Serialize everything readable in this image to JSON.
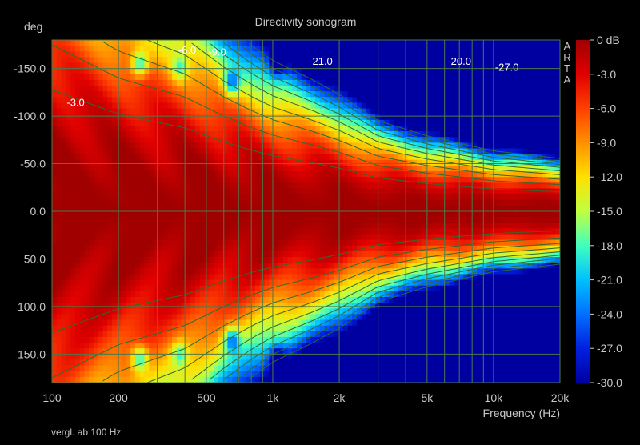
{
  "chart_data": {
    "type": "heatmap",
    "title": "Directivity sonogram",
    "xlabel": "Frequency (Hz)",
    "ylabel": "deg",
    "footnote": "vergl. ab 100 Hz",
    "brand": "ARTA",
    "x_scale": "log",
    "xlim": [
      100,
      20000
    ],
    "ylim": [
      -180,
      180
    ],
    "x_ticks": [
      {
        "value": 100,
        "label": "100"
      },
      {
        "value": 200,
        "label": "200"
      },
      {
        "value": 500,
        "label": "500"
      },
      {
        "value": 1000,
        "label": "1k"
      },
      {
        "value": 2000,
        "label": "2k"
      },
      {
        "value": 5000,
        "label": "5k"
      },
      {
        "value": 10000,
        "label": "10k"
      },
      {
        "value": 20000,
        "label": "20k"
      }
    ],
    "x_grid": [
      100,
      200,
      300,
      400,
      500,
      600,
      700,
      800,
      900,
      1000,
      2000,
      3000,
      4000,
      5000,
      6000,
      7000,
      8000,
      9000,
      10000,
      20000
    ],
    "y_ticks": [
      {
        "value": -150,
        "label": "-150.0"
      },
      {
        "value": -100,
        "label": "-100.0"
      },
      {
        "value": -50,
        "label": "-50.0"
      },
      {
        "value": 0,
        "label": "0.0"
      },
      {
        "value": 50,
        "label": "50.0"
      },
      {
        "value": 100,
        "label": "100.0"
      },
      {
        "value": 150,
        "label": "150.0"
      }
    ],
    "y_grid": [
      -150,
      -100,
      -50,
      0,
      50,
      100,
      150
    ],
    "colorbar": {
      "unit": "dB",
      "range": [
        -30,
        0
      ],
      "ticks": [
        {
          "value": 0,
          "label": "0 dB"
        },
        {
          "value": -3,
          "label": "-3.0"
        },
        {
          "value": -6,
          "label": "-6.0"
        },
        {
          "value": -9,
          "label": "-9.0"
        },
        {
          "value": -12,
          "label": "-12.0"
        },
        {
          "value": -15,
          "label": "-15.0"
        },
        {
          "value": -18,
          "label": "-18.0"
        },
        {
          "value": -21,
          "label": "-21.0"
        },
        {
          "value": -24,
          "label": "-24.0"
        },
        {
          "value": -27,
          "label": "-27.0"
        },
        {
          "value": -30,
          "label": "-30.0"
        }
      ],
      "colors": [
        "#a00000",
        "#e00000",
        "#ff4000",
        "#ff9000",
        "#ffe000",
        "#c0ff40",
        "#40ffc0",
        "#00c0ff",
        "#0070ff",
        "#0020e0",
        "#0000a0"
      ]
    },
    "contour_levels": [
      -3,
      -6,
      -9,
      -12,
      -15,
      -18,
      -21,
      -24,
      -27
    ],
    "contour_labels": [
      {
        "text": "-3.0",
        "freq": 128,
        "angle": -115
      },
      {
        "text": "-6.0",
        "freq": 410,
        "angle": -170
      },
      {
        "text": "-9.0",
        "freq": 560,
        "angle": -168
      },
      {
        "text": "-21.0",
        "freq": 1650,
        "angle": -158
      },
      {
        "text": "-20.0",
        "freq": 7000,
        "angle": -158
      },
      {
        "text": "-27.0",
        "freq": 11500,
        "angle": -152
      }
    ],
    "beamwidth_deg_at_-6dB": {
      "freqs": [
        100,
        200,
        400,
        600,
        800,
        1000,
        1500,
        2000,
        3000,
        5000,
        10000,
        20000
      ],
      "values": [
        175,
        140,
        120,
        100,
        88,
        80,
        70,
        62,
        48,
        40,
        32,
        28
      ]
    },
    "nulls": [
      {
        "freq": 250,
        "angle": 155,
        "depth": -27
      },
      {
        "freq": 380,
        "angle": 150,
        "depth": -20
      },
      {
        "freq": 650,
        "angle": 135,
        "depth": -27
      },
      {
        "freq": 1050,
        "angle": 155,
        "depth": -24
      },
      {
        "freq": 1500,
        "angle": 155,
        "depth": -21
      }
    ]
  }
}
